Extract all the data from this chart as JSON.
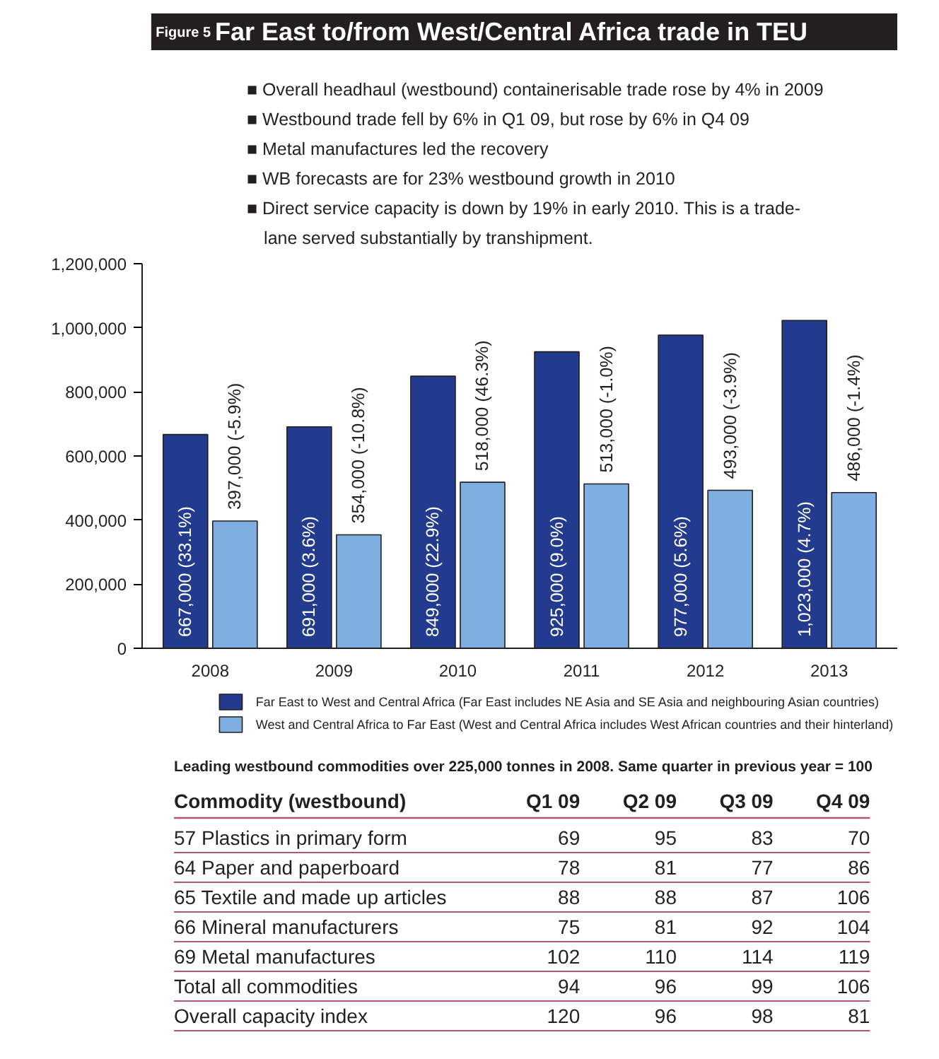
{
  "chart_data": [
    {
      "type": "bar",
      "title": "Far East to/from West/Central Africa trade in TEU",
      "annotations": [
        "Figure 5",
        "■ Overall headhaul (westbound) containerisable trade rose by 4% in 2009",
        "■ Westbound trade fell by 6% in Q1 09, but rose by 6% in Q4 09",
        "■ Metal manufactures led the recovery",
        "■ WB forecasts are for 23% westbound growth in 2010",
        "■ Direct service capacity is down by 19% in early 2010. This is a trade-lane served substantially by transhipment."
      ],
      "categories": [
        "2008",
        "2009",
        "2010",
        "2011",
        "2012",
        "2013"
      ],
      "series": [
        {
          "name": "Far East to West and Central Africa (Far East includes NE Asia and SE Asia and neighbouring Asian countries)",
          "color": "#233b8f",
          "values": [
            667000,
            691000,
            849000,
            925000,
            977000,
            1023000
          ],
          "value_labels": [
            "667,000 (33.1%)",
            "691,000 (3.6%)",
            "849,000 (22.9%)",
            "925,000 (9.0%)",
            "977,000 (5.6%)",
            "1,023,000 (4.7%)"
          ]
        },
        {
          "name": "West and Central Africa to Far East (West and Central Africa includes West African countries and their hinterland)",
          "color": "#7fafe0",
          "values": [
            397000,
            354000,
            518000,
            513000,
            493000,
            486000
          ],
          "value_labels": [
            "397,000 (-5.9%)",
            "354,000 (-10.8%)",
            "518,000 (46.3%)",
            "513,000 (-1.0%)",
            "493,000 (-3.9%)",
            "486,000 (-1.4%)"
          ]
        }
      ],
      "ylim": [
        0,
        1200000
      ],
      "yticks": [
        0,
        {
          "value": 200000,
          "label": "200,000"
        },
        {
          "value": 400000,
          "label": "400,000"
        },
        {
          "value": 600000,
          "label": "600,000"
        },
        {
          "value": 800000,
          "label": "800,000"
        },
        {
          "value": 1000000,
          "label": "1,000,000"
        },
        {
          "value": 1200000,
          "label": "1,200,000"
        }
      ],
      "grid": false,
      "legend": "bottom"
    },
    {
      "type": "heatmap",
      "title": "Leading westbound commodities over 225,000 tonnes in 2008. Same quarter in previous year = 100",
      "ylabel": "Commodity (westbound)",
      "categories": [
        "Q1 09",
        "Q2 09",
        "Q3 09",
        "Q4 09"
      ],
      "y_categories": [
        "57 Plastics in primary form",
        "64 Paper and paperboard",
        "65 Textile and made up articles",
        "66 Mineral manufacturers",
        "69 Metal manufactures",
        "Total all commodities",
        "Overall capacity index"
      ],
      "cells": [
        [
          69,
          95,
          83,
          70
        ],
        [
          78,
          81,
          77,
          86
        ],
        [
          88,
          88,
          87,
          106
        ],
        [
          75,
          81,
          92,
          104
        ],
        [
          102,
          110,
          114,
          119
        ],
        [
          94,
          96,
          99,
          106
        ],
        [
          120,
          96,
          98,
          81
        ]
      ],
      "data_labels": true
    }
  ]
}
